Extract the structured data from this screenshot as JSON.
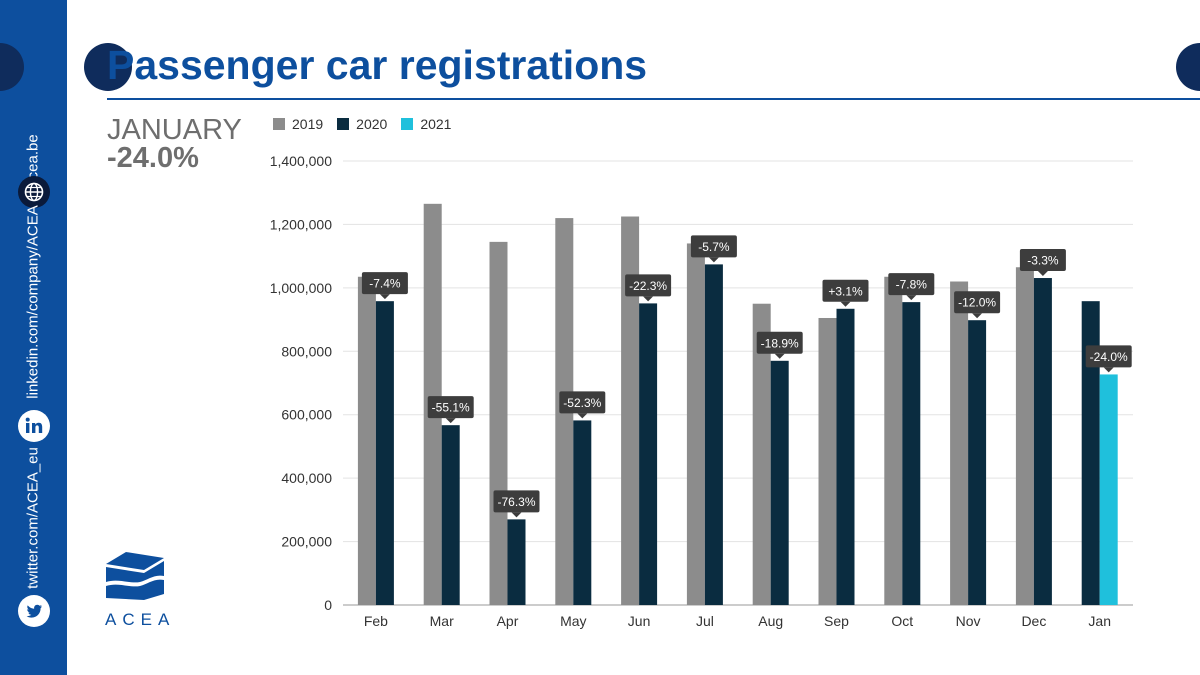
{
  "page": {
    "title": "Passenger car registrations",
    "headline_label": "JANUARY",
    "headline_value": "-24.0%"
  },
  "sidebar": {
    "website": "acea.be",
    "linkedin": "linkedin.com/company/ACEA",
    "twitter": "twitter.com/ACEA_eu",
    "icons": [
      "globe-icon",
      "linkedin-icon",
      "twitter-icon"
    ]
  },
  "logo": {
    "text": "ACEA"
  },
  "colors": {
    "brand": "#0d4f9e",
    "s2019": "#8c8c8c",
    "s2020": "#0a2c40",
    "s2021": "#1fc0dc"
  },
  "chart_data": {
    "type": "bar",
    "categories": [
      "Feb",
      "Mar",
      "Apr",
      "May",
      "Jun",
      "Jul",
      "Aug",
      "Sep",
      "Oct",
      "Nov",
      "Dec",
      "Jan"
    ],
    "series": [
      {
        "name": "2019",
        "color": "#8c8c8c",
        "values": [
          1035000,
          1265000,
          1145000,
          1220000,
          1225000,
          1140000,
          950000,
          905000,
          1035000,
          1020000,
          1065000,
          null
        ]
      },
      {
        "name": "2020",
        "color": "#0a2c40",
        "values": [
          958000,
          567000,
          270000,
          582000,
          951000,
          1074000,
          770000,
          934000,
          955000,
          898000,
          1031000,
          958000
        ]
      },
      {
        "name": "2021",
        "color": "#1fc0dc",
        "values": [
          null,
          null,
          null,
          null,
          null,
          null,
          null,
          null,
          null,
          null,
          null,
          727000
        ]
      }
    ],
    "change_labels": [
      "-7.4%",
      "-55.1%",
      "-76.3%",
      "-52.3%",
      "-22.3%",
      "-5.7%",
      "-18.9%",
      "+3.1%",
      "-7.8%",
      "-12.0%",
      "-3.3%",
      "-24.0%"
    ],
    "y_ticks": [
      "0",
      "200,000",
      "400,000",
      "600,000",
      "800,000",
      "1,000,000",
      "1,200,000",
      "1,400,000"
    ],
    "ylim": [
      0,
      1400000
    ],
    "grid": true,
    "legend": "top-left"
  }
}
